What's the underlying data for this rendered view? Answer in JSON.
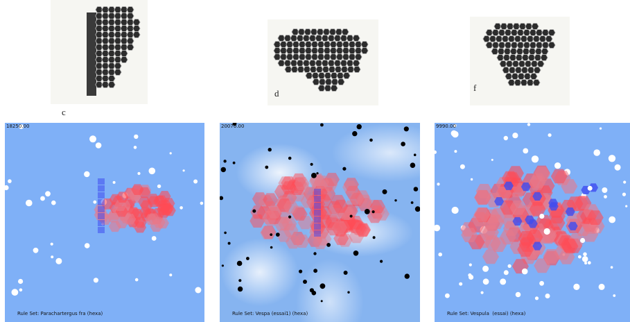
{
  "photos": [
    {
      "label": "c"
    },
    {
      "label": "d"
    },
    {
      "label": "f"
    }
  ],
  "simulations": [
    {
      "time": "18250.00",
      "rule_set": "Rule Set: Parachartergus fra (hexa)"
    },
    {
      "time": "20070.00",
      "rule_set": "Rule Set: Vespa (essai1) (hexa)"
    },
    {
      "time": "9990.00",
      "rule_set": "Rule Set: Vespula  (essai) (hexa)"
    }
  ],
  "colors": {
    "sky": "#7fb0f7",
    "comb_red": "#ff4b55",
    "comb_pink": "#e87a8a",
    "comb_blue": "#3f4cf0",
    "dot_white": "#ffffff",
    "dot_black": "#000000"
  }
}
